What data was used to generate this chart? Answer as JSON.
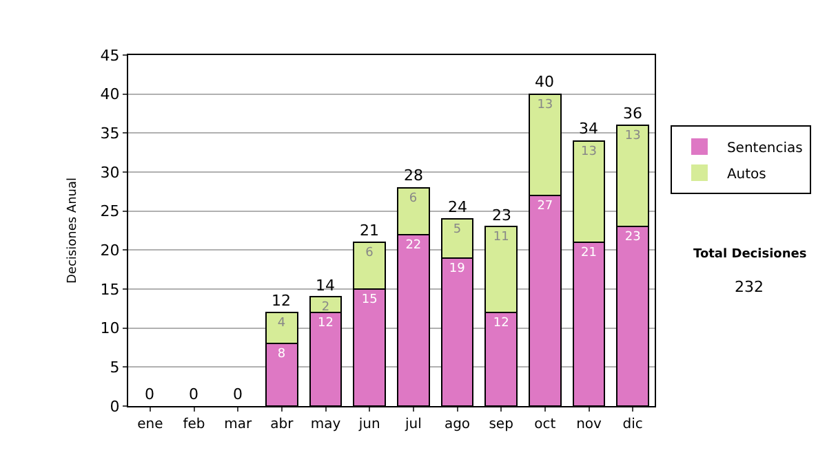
{
  "chart_data": {
    "type": "bar",
    "stacked": true,
    "ylabel": "Decisiones Anual",
    "categories": [
      "ene",
      "feb",
      "mar",
      "abr",
      "may",
      "jun",
      "jul",
      "ago",
      "sep",
      "oct",
      "nov",
      "dic"
    ],
    "series": [
      {
        "name": "Sentencias",
        "color": "#de78c4",
        "values": [
          0,
          0,
          0,
          8,
          12,
          15,
          22,
          19,
          12,
          27,
          21,
          23
        ],
        "value_labels": [
          null,
          null,
          null,
          "8",
          "12",
          "15",
          "22",
          "19",
          "12",
          "27",
          "21",
          "23"
        ]
      },
      {
        "name": "Autos",
        "color": "#d6ec98",
        "values": [
          0,
          0,
          0,
          4,
          2,
          6,
          6,
          5,
          11,
          13,
          13,
          13
        ],
        "value_labels": [
          null,
          null,
          null,
          "4",
          "2",
          "6",
          "6",
          "5",
          "11",
          "13",
          "13",
          "13"
        ]
      }
    ],
    "totals": [
      "0",
      "0",
      "0",
      "12",
      "14",
      "21",
      "28",
      "24",
      "23",
      "40",
      "34",
      "36"
    ],
    "ylim": [
      0,
      45
    ],
    "yticks": [
      0,
      5,
      10,
      15,
      20,
      25,
      30,
      35,
      40,
      45
    ],
    "grid": "y",
    "legend": "right",
    "annotations": [
      "Total Decisiones",
      "232"
    ]
  }
}
